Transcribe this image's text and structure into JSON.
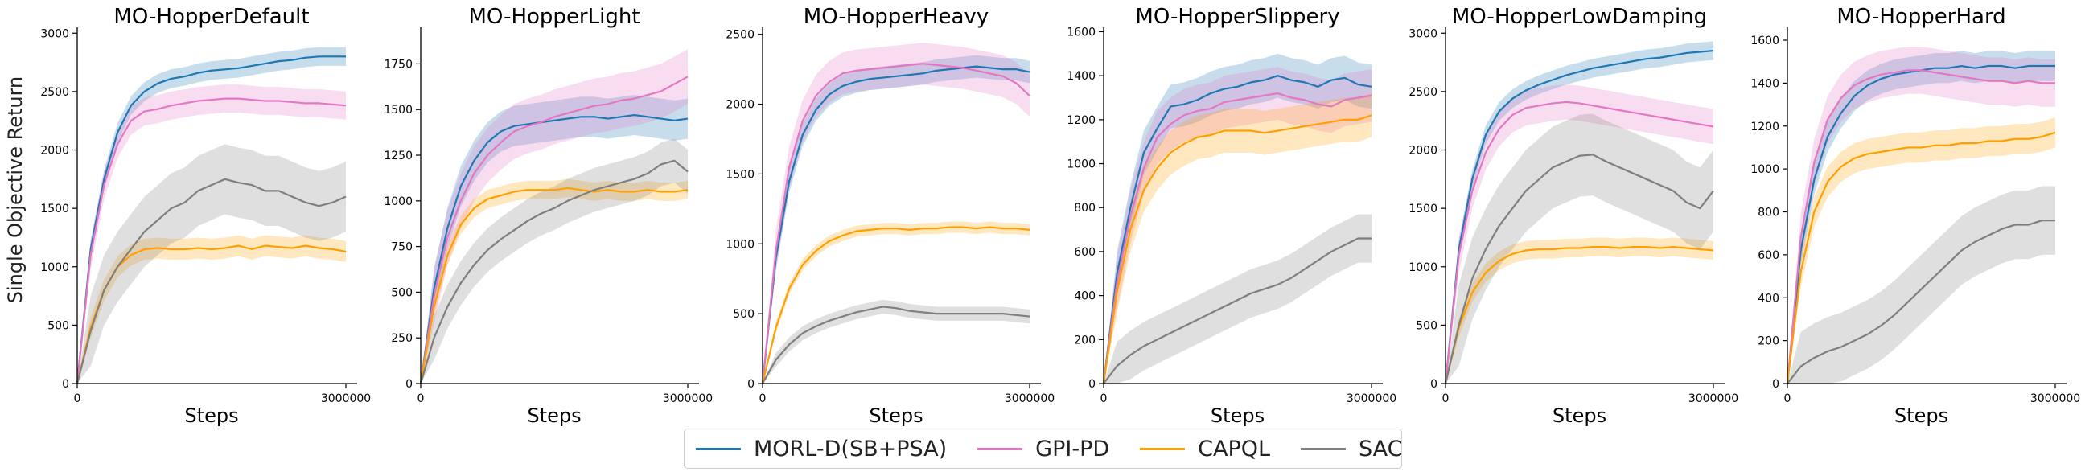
{
  "figure": {
    "ylabel": "Single Objective Return",
    "xlabel": "Steps",
    "legend": [
      {
        "label": "MORL-D(SB+PSA)",
        "color": "#1f77b4"
      },
      {
        "label": "GPI-PD",
        "color": "#e377c2"
      },
      {
        "label": "CAPQL",
        "color": "#ff9f00"
      },
      {
        "label": "SAC",
        "color": "#7f7f7f"
      }
    ]
  },
  "chart_data": [
    {
      "type": "line",
      "title": "MO-HopperDefault",
      "xlabel": "Steps",
      "ylabel": "Single Objective Return",
      "xlim": [
        0,
        3000000
      ],
      "ylim": [
        0,
        3050
      ],
      "xticks": [
        0,
        3000000
      ],
      "yticks": [
        0,
        500,
        1000,
        1500,
        2000,
        2500,
        3000
      ],
      "x": [
        0,
        150000,
        300000,
        450000,
        600000,
        750000,
        900000,
        1050000,
        1200000,
        1350000,
        1500000,
        1650000,
        1800000,
        1950000,
        2100000,
        2250000,
        2400000,
        2550000,
        2700000,
        2850000,
        3000000
      ],
      "series": [
        {
          "name": "MORL-D(SB+PSA)",
          "values": [
            0,
            1150,
            1750,
            2150,
            2380,
            2500,
            2570,
            2610,
            2630,
            2660,
            2680,
            2690,
            2700,
            2720,
            2740,
            2760,
            2770,
            2790,
            2800,
            2800,
            2800
          ],
          "band": 80
        },
        {
          "name": "GPI-PD",
          "values": [
            0,
            1100,
            1700,
            2050,
            2250,
            2330,
            2350,
            2380,
            2400,
            2420,
            2430,
            2440,
            2440,
            2430,
            2420,
            2420,
            2410,
            2400,
            2400,
            2390,
            2380
          ],
          "band": 120
        },
        {
          "name": "CAPQL",
          "values": [
            0,
            480,
            800,
            1000,
            1100,
            1150,
            1160,
            1150,
            1150,
            1160,
            1150,
            1160,
            1180,
            1150,
            1180,
            1170,
            1160,
            1180,
            1160,
            1150,
            1130
          ],
          "band": 90
        },
        {
          "name": "SAC",
          "values": [
            0,
            450,
            800,
            1000,
            1150,
            1300,
            1400,
            1500,
            1550,
            1650,
            1700,
            1750,
            1720,
            1700,
            1650,
            1650,
            1600,
            1550,
            1520,
            1550,
            1600
          ],
          "band": 300
        }
      ]
    },
    {
      "type": "line",
      "title": "MO-HopperLight",
      "xlabel": "Steps",
      "xlim": [
        0,
        3000000
      ],
      "ylim": [
        0,
        1950
      ],
      "xticks": [
        0,
        3000000
      ],
      "yticks": [
        0,
        250,
        500,
        750,
        1000,
        1250,
        1500,
        1750
      ],
      "x": [
        0,
        150000,
        300000,
        450000,
        600000,
        750000,
        900000,
        1050000,
        1200000,
        1350000,
        1500000,
        1650000,
        1800000,
        1950000,
        2100000,
        2250000,
        2400000,
        2550000,
        2700000,
        2850000,
        3000000
      ],
      "series": [
        {
          "name": "MORL-D(SB+PSA)",
          "values": [
            0,
            520,
            850,
            1080,
            1220,
            1320,
            1380,
            1410,
            1420,
            1430,
            1440,
            1450,
            1460,
            1460,
            1450,
            1460,
            1470,
            1460,
            1450,
            1440,
            1450
          ],
          "band": 110
        },
        {
          "name": "GPI-PD",
          "values": [
            0,
            480,
            800,
            1000,
            1150,
            1250,
            1320,
            1380,
            1410,
            1430,
            1460,
            1480,
            1500,
            1520,
            1530,
            1550,
            1560,
            1580,
            1600,
            1640,
            1680
          ],
          "band": 150
        },
        {
          "name": "CAPQL",
          "values": [
            0,
            420,
            700,
            870,
            960,
            1010,
            1030,
            1050,
            1060,
            1060,
            1060,
            1070,
            1060,
            1050,
            1060,
            1050,
            1050,
            1060,
            1050,
            1050,
            1060
          ],
          "band": 50
        },
        {
          "name": "SAC",
          "values": [
            0,
            250,
            420,
            550,
            650,
            730,
            790,
            840,
            890,
            930,
            960,
            1000,
            1030,
            1060,
            1080,
            1100,
            1120,
            1150,
            1200,
            1220,
            1160
          ],
          "band": 120
        }
      ]
    },
    {
      "type": "line",
      "title": "MO-HopperHeavy",
      "xlabel": "Steps",
      "xlim": [
        0,
        3000000
      ],
      "ylim": [
        0,
        2550
      ],
      "xticks": [
        0,
        3000000
      ],
      "yticks": [
        0,
        500,
        1000,
        1500,
        2000,
        2500
      ],
      "x": [
        0,
        150000,
        300000,
        450000,
        600000,
        750000,
        900000,
        1050000,
        1200000,
        1350000,
        1500000,
        1650000,
        1800000,
        1950000,
        2100000,
        2250000,
        2400000,
        2550000,
        2700000,
        2850000,
        3000000
      ],
      "series": [
        {
          "name": "MORL-D(SB+PSA)",
          "values": [
            0,
            900,
            1450,
            1780,
            1960,
            2070,
            2130,
            2160,
            2180,
            2190,
            2200,
            2210,
            2220,
            2240,
            2250,
            2260,
            2270,
            2260,
            2250,
            2250,
            2230
          ],
          "band": 80
        },
        {
          "name": "GPI-PD",
          "values": [
            0,
            950,
            1550,
            1880,
            2060,
            2160,
            2220,
            2240,
            2250,
            2260,
            2270,
            2280,
            2290,
            2280,
            2270,
            2260,
            2240,
            2220,
            2200,
            2150,
            2060
          ],
          "band": 150
        },
        {
          "name": "CAPQL",
          "values": [
            0,
            400,
            680,
            850,
            950,
            1020,
            1060,
            1090,
            1100,
            1110,
            1110,
            1100,
            1110,
            1110,
            1120,
            1120,
            1110,
            1120,
            1110,
            1110,
            1100
          ],
          "band": 40
        },
        {
          "name": "SAC",
          "values": [
            0,
            170,
            280,
            360,
            410,
            450,
            480,
            510,
            530,
            550,
            540,
            520,
            510,
            500,
            500,
            500,
            500,
            500,
            500,
            490,
            480
          ],
          "band": 50
        }
      ]
    },
    {
      "type": "line",
      "title": "MO-HopperSlippery",
      "xlabel": "Steps",
      "xlim": [
        0,
        3000000
      ],
      "ylim": [
        0,
        1620
      ],
      "xticks": [
        0,
        3000000
      ],
      "yticks": [
        0,
        200,
        400,
        600,
        800,
        1000,
        1200,
        1400,
        1600
      ],
      "x": [
        0,
        150000,
        300000,
        450000,
        600000,
        750000,
        900000,
        1050000,
        1200000,
        1350000,
        1500000,
        1650000,
        1800000,
        1950000,
        2100000,
        2250000,
        2400000,
        2550000,
        2700000,
        2850000,
        3000000
      ],
      "series": [
        {
          "name": "MORL-D(SB+PSA)",
          "values": [
            0,
            500,
            800,
            1050,
            1160,
            1260,
            1270,
            1290,
            1320,
            1340,
            1350,
            1370,
            1380,
            1400,
            1380,
            1370,
            1350,
            1380,
            1390,
            1360,
            1350
          ],
          "band": 100
        },
        {
          "name": "GPI-PD",
          "values": [
            0,
            460,
            760,
            980,
            1120,
            1180,
            1220,
            1240,
            1250,
            1280,
            1290,
            1300,
            1310,
            1320,
            1300,
            1290,
            1270,
            1260,
            1290,
            1300,
            1310
          ],
          "band": 120
        },
        {
          "name": "CAPQL",
          "values": [
            0,
            420,
            700,
            880,
            980,
            1050,
            1090,
            1120,
            1130,
            1150,
            1150,
            1150,
            1140,
            1150,
            1160,
            1170,
            1180,
            1190,
            1200,
            1200,
            1220
          ],
          "band": 100
        },
        {
          "name": "SAC",
          "values": [
            0,
            80,
            130,
            170,
            200,
            230,
            260,
            290,
            320,
            350,
            380,
            410,
            430,
            450,
            480,
            520,
            560,
            600,
            630,
            660,
            660
          ],
          "band": 110
        }
      ]
    },
    {
      "type": "line",
      "title": "MO-HopperLowDamping",
      "xlabel": "Steps",
      "xlim": [
        0,
        3000000
      ],
      "ylim": [
        0,
        3050
      ],
      "xticks": [
        0,
        3000000
      ],
      "yticks": [
        0,
        500,
        1000,
        1500,
        2000,
        2500,
        3000
      ],
      "x": [
        0,
        150000,
        300000,
        450000,
        600000,
        750000,
        900000,
        1050000,
        1200000,
        1350000,
        1500000,
        1650000,
        1800000,
        1950000,
        2100000,
        2250000,
        2400000,
        2550000,
        2700000,
        2850000,
        3000000
      ],
      "series": [
        {
          "name": "MORL-D(SB+PSA)",
          "values": [
            0,
            1150,
            1750,
            2130,
            2330,
            2440,
            2510,
            2560,
            2600,
            2640,
            2670,
            2700,
            2720,
            2740,
            2760,
            2780,
            2790,
            2810,
            2830,
            2840,
            2850
          ],
          "band": 80
        },
        {
          "name": "GPI-PD",
          "values": [
            0,
            1100,
            1650,
            1980,
            2180,
            2300,
            2360,
            2380,
            2400,
            2410,
            2400,
            2380,
            2360,
            2340,
            2320,
            2300,
            2280,
            2260,
            2240,
            2220,
            2200
          ],
          "band": 150
        },
        {
          "name": "CAPQL",
          "values": [
            0,
            480,
            780,
            950,
            1050,
            1110,
            1140,
            1150,
            1150,
            1160,
            1160,
            1170,
            1170,
            1160,
            1170,
            1170,
            1160,
            1170,
            1160,
            1150,
            1140
          ],
          "band": 80
        },
        {
          "name": "SAC",
          "values": [
            0,
            500,
            900,
            1150,
            1350,
            1500,
            1650,
            1750,
            1850,
            1900,
            1950,
            1960,
            1900,
            1850,
            1800,
            1750,
            1700,
            1650,
            1550,
            1500,
            1650
          ],
          "band": 350
        }
      ]
    },
    {
      "type": "line",
      "title": "MO-HopperHard",
      "xlabel": "Steps",
      "xlim": [
        0,
        3000000
      ],
      "ylim": [
        0,
        1660
      ],
      "xticks": [
        0,
        3000000
      ],
      "yticks": [
        0,
        200,
        400,
        600,
        800,
        1000,
        1200,
        1400,
        1600
      ],
      "x": [
        0,
        150000,
        300000,
        450000,
        600000,
        750000,
        900000,
        1050000,
        1200000,
        1350000,
        1500000,
        1650000,
        1800000,
        1950000,
        2100000,
        2250000,
        2400000,
        2550000,
        2700000,
        2850000,
        3000000
      ],
      "series": [
        {
          "name": "MORL-D(SB+PSA)",
          "values": [
            0,
            620,
            950,
            1150,
            1260,
            1340,
            1390,
            1420,
            1440,
            1450,
            1460,
            1470,
            1470,
            1480,
            1470,
            1480,
            1480,
            1470,
            1480,
            1480,
            1480
          ],
          "band": 70
        },
        {
          "name": "GPI-PD",
          "values": [
            0,
            680,
            1030,
            1230,
            1330,
            1390,
            1420,
            1440,
            1450,
            1460,
            1460,
            1450,
            1440,
            1430,
            1420,
            1410,
            1410,
            1400,
            1410,
            1400,
            1400
          ],
          "band": 110
        },
        {
          "name": "CAPQL",
          "values": [
            0,
            520,
            800,
            940,
            1010,
            1050,
            1070,
            1080,
            1090,
            1100,
            1100,
            1110,
            1110,
            1120,
            1120,
            1130,
            1130,
            1140,
            1140,
            1150,
            1170
          ],
          "band": 70
        },
        {
          "name": "SAC",
          "values": [
            0,
            80,
            120,
            150,
            170,
            200,
            230,
            270,
            320,
            380,
            440,
            500,
            560,
            620,
            660,
            690,
            720,
            740,
            740,
            760,
            760
          ],
          "band": 160
        }
      ]
    }
  ]
}
